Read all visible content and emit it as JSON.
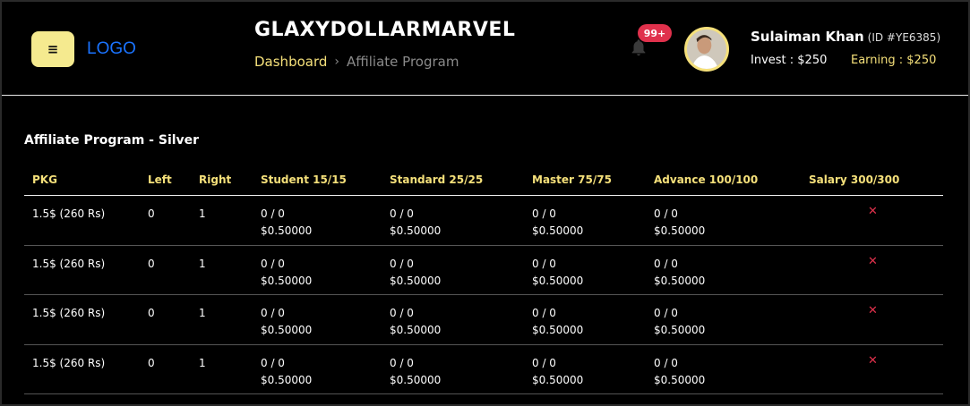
{
  "header": {
    "menu_icon": "hamburger-icon",
    "logo": "LOGO",
    "site_title": "GLAXYDOLLARMARVEL",
    "breadcrumb": {
      "home": "Dashboard",
      "separator": "›",
      "current": "Affiliate Program"
    },
    "notifications": {
      "icon": "bell-icon",
      "count": "99+"
    },
    "user": {
      "name": "Sulaiman Khan",
      "id": "(ID #YE6385)",
      "invest": "Invest : $250",
      "earning": "Earning : $250"
    }
  },
  "colors": {
    "accent": "#f5e07a",
    "badge": "#e0314c",
    "logo": "#1a73ff",
    "background": "#000000"
  },
  "main": {
    "section_title": "Affiliate Program - Silver",
    "columns": [
      "PKG",
      "Left",
      "Right",
      "Student 15/15",
      "Standard 25/25",
      "Master 75/75",
      "Advance 100/100",
      "Salary 300/300"
    ],
    "rows": [
      {
        "pkg": "1.5$ (260 Rs)",
        "left": "0",
        "right": "1",
        "student": {
          "count": "0 / 0",
          "amount": "$0.50000"
        },
        "standard": {
          "count": "0 / 0",
          "amount": "$0.50000"
        },
        "master": {
          "count": "0 / 0",
          "amount": "$0.50000"
        },
        "advance": {
          "count": "0 / 0",
          "amount": "$0.50000"
        },
        "salary": "✕"
      },
      {
        "pkg": "1.5$ (260 Rs)",
        "left": "0",
        "right": "1",
        "student": {
          "count": "0 / 0",
          "amount": "$0.50000"
        },
        "standard": {
          "count": "0 / 0",
          "amount": "$0.50000"
        },
        "master": {
          "count": "0 / 0",
          "amount": "$0.50000"
        },
        "advance": {
          "count": "0 / 0",
          "amount": "$0.50000"
        },
        "salary": "✕"
      },
      {
        "pkg": "1.5$ (260 Rs)",
        "left": "0",
        "right": "1",
        "student": {
          "count": "0 / 0",
          "amount": "$0.50000"
        },
        "standard": {
          "count": "0 / 0",
          "amount": "$0.50000"
        },
        "master": {
          "count": "0 / 0",
          "amount": "$0.50000"
        },
        "advance": {
          "count": "0 / 0",
          "amount": "$0.50000"
        },
        "salary": "✕"
      },
      {
        "pkg": "1.5$ (260 Rs)",
        "left": "0",
        "right": "1",
        "student": {
          "count": "0 / 0",
          "amount": "$0.50000"
        },
        "standard": {
          "count": "0 / 0",
          "amount": "$0.50000"
        },
        "master": {
          "count": "0 / 0",
          "amount": "$0.50000"
        },
        "advance": {
          "count": "0 / 0",
          "amount": "$0.50000"
        },
        "salary": "✕"
      }
    ]
  }
}
